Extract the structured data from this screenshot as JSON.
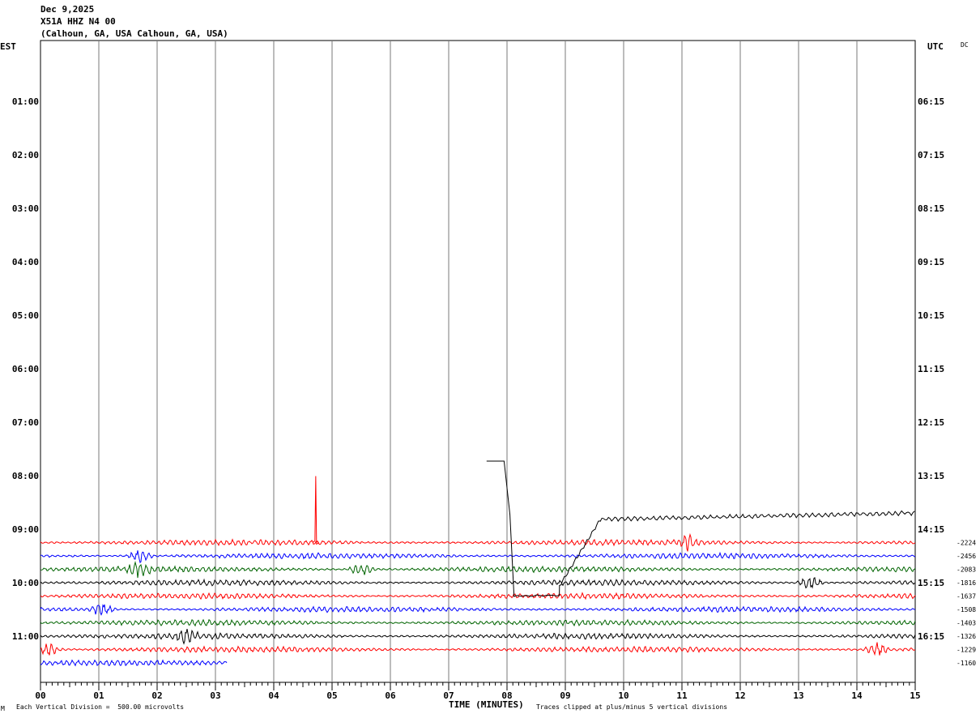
{
  "header": {
    "date": "Dec 9,2025",
    "station": "X51A HHZ N4 00",
    "location": "(Calhoun, GA, USA Calhoun, GA, USA)",
    "left_zone": "EST",
    "right_zone": "UTC",
    "dc_label": "DC"
  },
  "footer": {
    "vertical_division": "Each Vertical Division =  500.00 microvolts",
    "x_axis_title": "TIME (MINUTES)",
    "clip_note": "Traces clipped at plus/minus 5 vertical divisions",
    "corner_mark": "M"
  },
  "chart_data": {
    "type": "line",
    "title": "",
    "xlabel": "TIME (MINUTES)",
    "ylabel": "",
    "xlim": [
      0,
      15
    ],
    "x_ticks": [
      "00",
      "01",
      "02",
      "03",
      "04",
      "05",
      "06",
      "07",
      "08",
      "09",
      "10",
      "11",
      "12",
      "13",
      "14",
      "15"
    ],
    "left_hour_labels": [
      "01:00",
      "02:00",
      "03:00",
      "04:00",
      "05:00",
      "06:00",
      "07:00",
      "08:00",
      "09:00",
      "10:00",
      "11:00"
    ],
    "right_hour_labels": [
      "06:15",
      "07:15",
      "08:15",
      "09:15",
      "10:15",
      "11:15",
      "12:15",
      "13:15",
      "14:15",
      "15:15",
      "16:15"
    ],
    "grid": true,
    "series": [
      {
        "color": "#ff0000",
        "start": "09:15",
        "offset": "-2224",
        "end_minute": 15,
        "burst_minutes": [
          11.1
        ]
      },
      {
        "color": "#0000ff",
        "start": "09:30",
        "offset": "-2456",
        "end_minute": 15,
        "burst_minutes": [
          1.7
        ]
      },
      {
        "color": "#006400",
        "start": "09:45",
        "offset": "-2083",
        "end_minute": 15,
        "burst_minutes": [
          1.7,
          5.5
        ]
      },
      {
        "color": "#000000",
        "start": "10:00",
        "offset": "-1816",
        "end_minute": 15,
        "burst_minutes": [
          13.2
        ]
      },
      {
        "color": "#ff0000",
        "start": "10:15",
        "offset": "-1637",
        "end_minute": 15,
        "burst_minutes": []
      },
      {
        "color": "#0000ff",
        "start": "10:30",
        "offset": "-1508",
        "end_minute": 15,
        "burst_minutes": [
          1.05
        ]
      },
      {
        "color": "#006400",
        "start": "10:45",
        "offset": "-1403",
        "end_minute": 15,
        "burst_minutes": []
      },
      {
        "color": "#000000",
        "start": "11:00",
        "offset": "-1326",
        "end_minute": 15,
        "burst_minutes": [
          2.5
        ]
      },
      {
        "color": "#ff0000",
        "start": "11:15",
        "offset": "-1229",
        "end_minute": 15,
        "burst_minutes": [
          0.15,
          14.35
        ]
      },
      {
        "color": "#0000ff",
        "start": "11:30",
        "offset": "-1160",
        "end_minute": 3.2,
        "burst_minutes": []
      }
    ],
    "events": [
      {
        "color": "#ff0000",
        "type": "spike",
        "trace_start": "09:15",
        "minute": 4.72
      },
      {
        "color": "#000000",
        "type": "step",
        "trace_start": "09:00",
        "minute_from": 7.65,
        "minute_to": 15
      }
    ]
  }
}
